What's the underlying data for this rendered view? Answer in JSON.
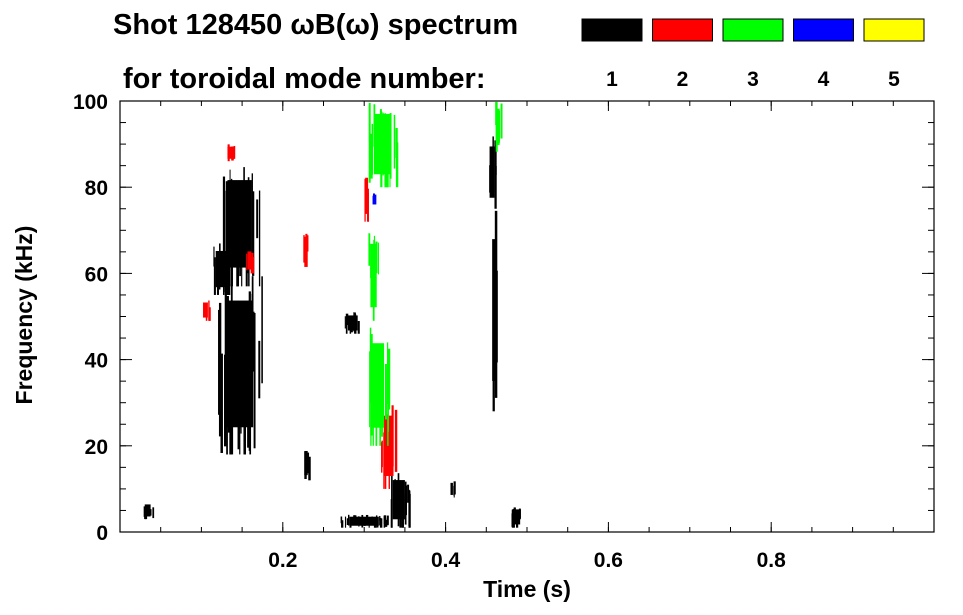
{
  "chart_data": {
    "type": "heatmap",
    "title_line1": "Shot 128450 ωB(ω) spectrum",
    "title_line2": "for toroidal mode number:",
    "xlabel": "Time (s)",
    "ylabel": "Frequency (kHz)",
    "xlim": [
      0.0,
      1.0
    ],
    "ylim": [
      0,
      100
    ],
    "x_ticks": [
      0.2,
      0.4,
      0.6,
      0.8
    ],
    "x_tick_labels": [
      "0.2",
      "0.4",
      "0.6",
      "0.8"
    ],
    "y_ticks": [
      0,
      20,
      40,
      60,
      80,
      100
    ],
    "y_tick_labels": [
      "0",
      "20",
      "40",
      "60",
      "80",
      "100"
    ],
    "legend_position": "top-right",
    "legend": [
      {
        "mode": "1",
        "color": "#000000"
      },
      {
        "mode": "2",
        "color": "#ff0000"
      },
      {
        "mode": "3",
        "color": "#00ff00"
      },
      {
        "mode": "4",
        "color": "#0000ff"
      },
      {
        "mode": "5",
        "color": "#ffff00"
      }
    ],
    "regions": [
      {
        "mode": "1",
        "color": "#000000",
        "t": [
          0.122,
          0.172
        ],
        "f": [
          57,
          86
        ]
      },
      {
        "mode": "1",
        "color": "#000000",
        "t": [
          0.112,
          0.14
        ],
        "f": [
          55,
          67
        ]
      },
      {
        "mode": "1",
        "color": "#000000",
        "t": [
          0.118,
          0.175
        ],
        "f": [
          18,
          60
        ]
      },
      {
        "mode": "1",
        "color": "#000000",
        "t": [
          0.33,
          0.355
        ],
        "f": [
          1,
          14
        ]
      },
      {
        "mode": "1",
        "color": "#000000",
        "t": [
          0.27,
          0.33
        ],
        "f": [
          1,
          4
        ]
      },
      {
        "mode": "1",
        "color": "#000000",
        "t": [
          0.276,
          0.296
        ],
        "f": [
          46,
          51
        ]
      },
      {
        "mode": "1",
        "color": "#000000",
        "t": [
          0.452,
          0.462
        ],
        "f": [
          75,
          92
        ]
      },
      {
        "mode": "1",
        "color": "#000000",
        "t": [
          0.456,
          0.462
        ],
        "f": [
          28,
          75
        ]
      },
      {
        "mode": "1",
        "color": "#000000",
        "t": [
          0.478,
          0.495
        ],
        "f": [
          1,
          6
        ]
      },
      {
        "mode": "1",
        "color": "#000000",
        "t": [
          0.405,
          0.41
        ],
        "f": [
          8,
          12
        ]
      },
      {
        "mode": "1",
        "color": "#000000",
        "t": [
          0.225,
          0.232
        ],
        "f": [
          12,
          20
        ]
      },
      {
        "mode": "1",
        "color": "#000000",
        "t": [
          0.028,
          0.04
        ],
        "f": [
          3,
          7
        ]
      },
      {
        "mode": "2",
        "color": "#ff0000",
        "t": [
          0.1,
          0.11
        ],
        "f": [
          49,
          54
        ]
      },
      {
        "mode": "2",
        "color": "#ff0000",
        "t": [
          0.13,
          0.14
        ],
        "f": [
          86,
          90
        ]
      },
      {
        "mode": "2",
        "color": "#ff0000",
        "t": [
          0.155,
          0.163
        ],
        "f": [
          60,
          66
        ]
      },
      {
        "mode": "2",
        "color": "#ff0000",
        "t": [
          0.225,
          0.232
        ],
        "f": [
          60,
          70
        ]
      },
      {
        "mode": "2",
        "color": "#ff0000",
        "t": [
          0.32,
          0.34
        ],
        "f": [
          10,
          30
        ]
      },
      {
        "mode": "2",
        "color": "#ff0000",
        "t": [
          0.3,
          0.306
        ],
        "f": [
          72,
          84
        ]
      },
      {
        "mode": "3",
        "color": "#00ff00",
        "t": [
          0.305,
          0.318
        ],
        "f": [
          49,
          70
        ]
      },
      {
        "mode": "3",
        "color": "#00ff00",
        "t": [
          0.302,
          0.33
        ],
        "f": [
          20,
          48
        ]
      },
      {
        "mode": "3",
        "color": "#00ff00",
        "t": [
          0.305,
          0.34
        ],
        "f": [
          80,
          100
        ]
      },
      {
        "mode": "3",
        "color": "#00ff00",
        "t": [
          0.46,
          0.468
        ],
        "f": [
          88,
          100
        ]
      },
      {
        "mode": "4",
        "color": "#0000ff",
        "t": [
          0.31,
          0.314
        ],
        "f": [
          76,
          79
        ]
      }
    ]
  }
}
